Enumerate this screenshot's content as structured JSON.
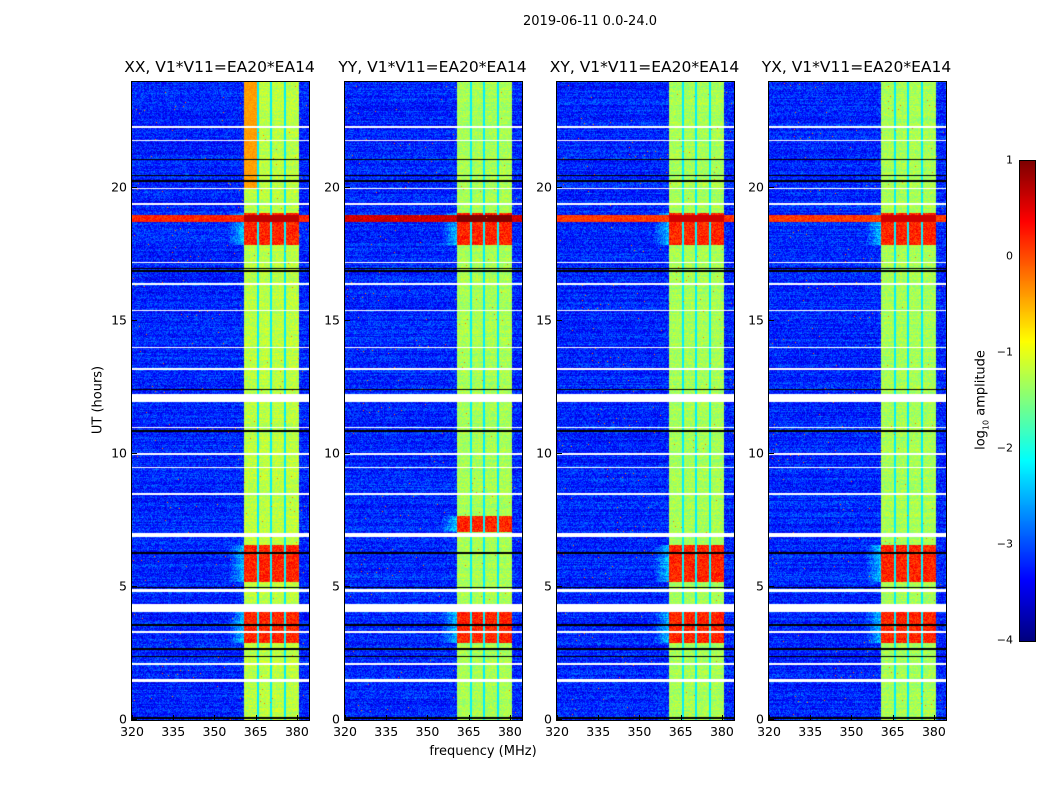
{
  "chart_data": {
    "type": "heatmap",
    "suptitle": "2019-06-11 0.0-24.0",
    "xlabel": "frequency (MHz)",
    "ylabel": "UT (hours)",
    "xlim": [
      320,
      384.4
    ],
    "ylim": [
      0,
      24
    ],
    "xticks": [
      "320",
      "335",
      "350",
      "365",
      "380"
    ],
    "xtick_values": [
      320,
      335,
      350,
      365,
      380
    ],
    "yticks": [
      "0",
      "5",
      "10",
      "15",
      "20"
    ],
    "ytick_values": [
      0,
      5,
      10,
      15,
      20
    ],
    "panels": [
      {
        "title": "XX, V1*V11=EA20*EA14",
        "band_level": -1.2,
        "hot_blocks": [
          [
            2.9,
            4.1
          ],
          [
            5.2,
            6.6
          ],
          [
            17.9,
            19.1
          ]
        ],
        "rfi_level": 0.4
      },
      {
        "title": "YY, V1*V11=EA20*EA14",
        "band_level": -1.3,
        "hot_blocks": [
          [
            2.9,
            4.1
          ],
          [
            7.1,
            7.7
          ],
          [
            17.9,
            19.1
          ]
        ],
        "rfi_level": 0.8
      },
      {
        "title": "XY, V1*V11=EA20*EA14",
        "band_level": -1.3,
        "hot_blocks": [
          [
            2.9,
            4.1
          ],
          [
            5.2,
            6.6
          ],
          [
            17.9,
            19.1
          ]
        ],
        "rfi_level": 0.3
      },
      {
        "title": "YX, V1*V11=EA20*EA14",
        "band_level": -1.3,
        "hot_blocks": [
          [
            2.9,
            4.1
          ],
          [
            5.2,
            6.6
          ],
          [
            17.9,
            19.1
          ]
        ],
        "rfi_level": 0.3
      }
    ],
    "band_mhz": [
      360.7,
      380.4
    ],
    "subband_gaps_mhz": [
      365.8,
      370.5,
      375.6
    ],
    "flagged_rows_hours": [
      [
        4.1,
        4.4
      ],
      [
        6.9,
        7.05
      ],
      [
        12.0,
        12.3
      ],
      [
        1.45,
        1.55
      ],
      [
        2.1,
        2.15
      ],
      [
        3.3,
        3.35
      ],
      [
        4.85,
        4.95
      ],
      [
        8.5,
        8.55
      ],
      [
        9.5,
        9.55
      ],
      [
        10.0,
        10.05
      ],
      [
        11.0,
        11.05
      ],
      [
        13.2,
        13.25
      ],
      [
        14.0,
        14.05
      ],
      [
        15.4,
        15.45
      ],
      [
        16.4,
        16.45
      ],
      [
        17.2,
        17.25
      ],
      [
        19.4,
        19.45
      ],
      [
        20.0,
        20.05
      ],
      [
        21.8,
        21.85
      ],
      [
        22.3,
        22.35
      ]
    ],
    "dark_rows_hours": [
      0.1,
      2.4,
      2.7,
      3.6,
      5.0,
      6.3,
      10.9,
      12.45,
      16.9,
      17.0,
      20.3,
      20.5,
      21.1
    ],
    "background_level": -3.2,
    "colorbar": {
      "label_prefix": "log",
      "label_sub": "10",
      "label_suffix": " amplitude",
      "range": [
        -4,
        1
      ],
      "ticks": [
        "1",
        "0",
        "−1",
        "−2",
        "−3",
        "−4"
      ],
      "tick_values": [
        1,
        0,
        -1,
        -2,
        -3,
        -4
      ],
      "colormap": "jet"
    }
  }
}
